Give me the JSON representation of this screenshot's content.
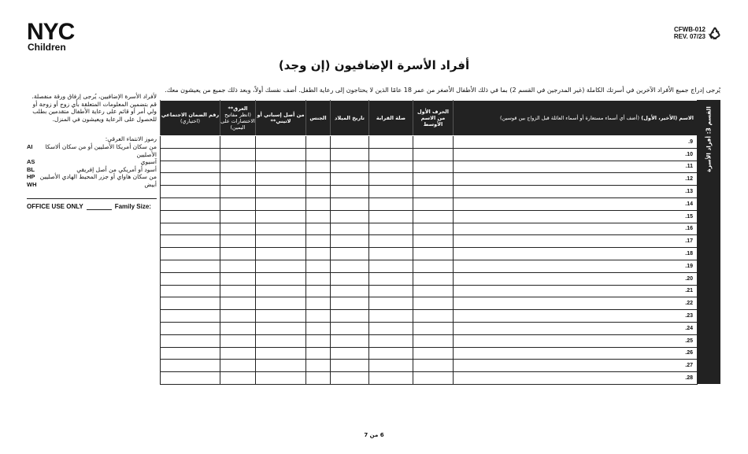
{
  "header": {
    "logo_main": "NYC",
    "logo_sub": "Children",
    "form_code": "CFWB-012",
    "revision": "REV. 07/23"
  },
  "title": "أفراد الأسرة الإضافيون (إن وجد)",
  "instructions": "يُرجى إدراج جميع الأفراد الآخرين في أسرتك الكاملة (غير المدرجين في القسم 2) بما في ذلك الأطفال الأصغر من عمر 18 عامًا الذين لا يحتاجون إلى رعاية الطفل. أضف نفسك أولاً، وبعد ذلك جميع من يعيشون معك.",
  "side_panel": {
    "note": "لأفراد الأسرة الإضافيين، يُرجى إرفاق ورقة منفصلة. قم بتضمين المعلومات المتعلقة بأي زوج أو زوجة أو ولي أمر أو قائم على رعاية الأطفال متقدمين بطلب للحصول على الرعاية ويعيشون في المنزل.",
    "codes_title": "رموز الانتماء العرقي:",
    "codes": [
      {
        "code": "AI",
        "label": "من سكان أمريكا الأصليين أو من سكان ألاسكا الأصليين"
      },
      {
        "code": "AS",
        "label": "آسيوي"
      },
      {
        "code": "BL",
        "label": "أسود أو أمريكي من أصل إفريقي"
      },
      {
        "code": "HP",
        "label": "من سكان هاواي أو جزر المحيط الهادي الأصليين"
      },
      {
        "code": "WH",
        "label": "أبيض"
      }
    ],
    "office_use": "OFFICE USE ONLY",
    "family_size": "Family Size:"
  },
  "table": {
    "section_label": "القسم 3: أفراد الأسرة",
    "columns": [
      {
        "title": "الاسم (الأخير، الأول)",
        "note": "(أضف أي أسماء مستعارة أو أسماء العائلة قبل الزواج بين قوسين)"
      },
      {
        "title": "الحرف الأول من الاسم الأوسط"
      },
      {
        "title": "صلة القرابة"
      },
      {
        "title": "تاريخ الميلاد"
      },
      {
        "title": "الجنس"
      },
      {
        "title": "من أصل إسباني أو لاتيني**"
      },
      {
        "title": "العرق**",
        "note": "(انظر مفاتيح الاختصارات على اليمين)"
      },
      {
        "title": "رقم الضمان الاجتماعي",
        "note": "(اختياري)"
      }
    ],
    "rows": [
      "9.",
      "10.",
      "11.",
      "12.",
      "13.",
      "14.",
      "15.",
      "16.",
      "17.",
      "18.",
      "19.",
      "20.",
      "21.",
      "22.",
      "23.",
      "24.",
      "25.",
      "26.",
      "27.",
      "28."
    ]
  },
  "footer": {
    "page": "6 من 7"
  }
}
